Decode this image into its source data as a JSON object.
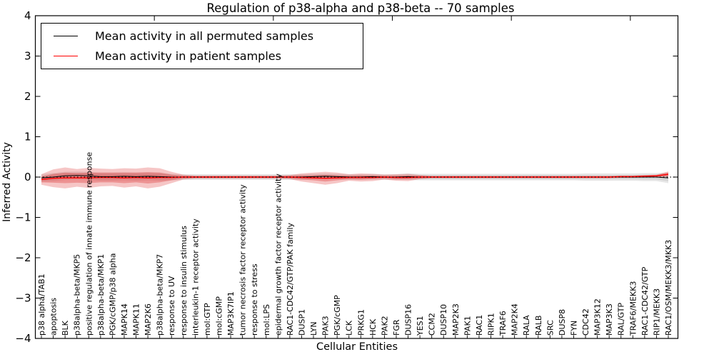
{
  "chart_data": {
    "type": "line",
    "title": "Regulation of p38-alpha and p38-beta -- 70 samples",
    "xlabel": "Cellular Entities",
    "ylabel": "Inferred Activity",
    "ylim": [
      -4,
      4
    ],
    "xlim": [
      0,
      54
    ],
    "grid": false,
    "legend_position": "upper left",
    "y_ticks": [
      4,
      3,
      2,
      1,
      0,
      -1,
      -2,
      -3,
      -4
    ],
    "y_tick_labels": [
      "4",
      "3",
      "2",
      "1",
      "0",
      "−1",
      "−2",
      "−3",
      "−4"
    ],
    "x_major_ticks": [
      10,
      20,
      30,
      40,
      50
    ],
    "categories": [
      "p38 alpha/TAB1",
      "apoptosis",
      "BLK",
      "p38alpha-beta/MKP5",
      "positive regulation of innate immune response",
      "p38alpha-beta/MKP1",
      "PGK/cGMP/p38 alpha",
      "MAPK14",
      "MAPK11",
      "MAP2K6",
      "p38alpha-beta/MKP7",
      "response to UV",
      "response to insulin stimulus",
      "interleukin-1 receptor activity",
      "mol:GTP",
      "mol:cGMP",
      "MAP3K7IP1",
      "tumor necrosis factor receptor activity",
      "response to stress",
      "mol:LPS",
      "epidermal growth factor receptor activity",
      "RAC1-CDC42/GTP/PAK family",
      "DUSP1",
      "LYN",
      "PAK3",
      "PGK/cGMP",
      "LCK",
      "PRKG1",
      "HCK",
      "PAK2",
      "FGR",
      "DUSP16",
      "YES1",
      "CCM2",
      "DUSP10",
      "MAP2K3",
      "PAK1",
      "RAC1",
      "RIPK1",
      "TRAF6",
      "MAP2K4",
      "RALA",
      "RALB",
      "SRC",
      "DUSP8",
      "FYN",
      "CDC42",
      "MAP3K12",
      "MAP3K3",
      "RAL/GTP",
      "TRAF6/MEKK3",
      "RAC1-CDC42/GTP",
      "RIP1/MEKK3",
      "RAC1/OSM/MEKK3/MKK3"
    ],
    "legend": {
      "entries": [
        {
          "label": "Mean activity in all permuted samples",
          "color": "#000000"
        },
        {
          "label": "Mean activity in patient samples",
          "color": "#ff0000"
        }
      ]
    },
    "series": [
      {
        "name": "Mean activity in all permuted samples",
        "color": "#000000",
        "style": "solid",
        "values": [
          -0.02,
          0.0,
          0.03,
          0.04,
          0.03,
          0.01,
          0.01,
          0.02,
          0.01,
          0.02,
          0.01,
          0.0,
          0,
          0,
          0,
          0,
          0,
          0,
          0,
          0,
          0,
          0,
          0,
          0.01,
          0.02,
          0.01,
          0,
          0,
          0.01,
          0,
          0,
          0.01,
          0,
          0,
          0,
          0,
          0,
          0,
          0,
          0,
          0,
          0,
          0,
          0,
          0,
          0,
          0,
          0,
          0,
          0,
          0,
          0,
          0,
          -0.02
        ]
      },
      {
        "name": "Mean activity in patient samples",
        "color": "#ff0000",
        "style": "solid",
        "values": [
          -0.06,
          -0.03,
          -0.02,
          -0.02,
          -0.02,
          -0.01,
          -0.01,
          -0.02,
          -0.01,
          -0.02,
          -0.01,
          -0.01,
          0,
          0,
          0,
          0,
          0,
          0,
          0,
          0,
          0,
          0,
          -0.01,
          -0.02,
          -0.03,
          -0.02,
          -0.01,
          -0.01,
          -0.01,
          0,
          -0.01,
          -0.01,
          0,
          0,
          0,
          0,
          0,
          0,
          0,
          0,
          0,
          0,
          0,
          0,
          0,
          0,
          0,
          0,
          0,
          0.01,
          0.01,
          0.02,
          0.03,
          0.07
        ]
      }
    ],
    "zero_line": {
      "color": "#000000",
      "style": "dotted",
      "y": 0
    },
    "bands": [
      {
        "name": "permuted-band-outer",
        "center": "permuted",
        "color": "#888888",
        "opacity": 0.21,
        "half_widths": [
          0.09,
          0.1,
          0.1,
          0.1,
          0.1,
          0.1,
          0.1,
          0.1,
          0.1,
          0.1,
          0.1,
          0.08,
          0.07,
          0.07,
          0.07,
          0.07,
          0.07,
          0.07,
          0.07,
          0.07,
          0.07,
          0.07,
          0.07,
          0.07,
          0.07,
          0.07,
          0.07,
          0.07,
          0.07,
          0.07,
          0.07,
          0.08,
          0.08,
          0.08,
          0.08,
          0.08,
          0.08,
          0.08,
          0.08,
          0.08,
          0.08,
          0.08,
          0.08,
          0.08,
          0.08,
          0.08,
          0.09,
          0.09,
          0.09,
          0.09,
          0.09,
          0.1,
          0.1,
          0.13
        ]
      },
      {
        "name": "permuted-band-inner",
        "center": "permuted",
        "color": "#888888",
        "opacity": 0.18,
        "half_widths": [
          0.05,
          0.06,
          0.06,
          0.06,
          0.06,
          0.06,
          0.06,
          0.06,
          0.06,
          0.06,
          0.06,
          0.05,
          0.04,
          0.04,
          0.04,
          0.04,
          0.04,
          0.04,
          0.04,
          0.04,
          0.04,
          0.04,
          0.04,
          0.04,
          0.04,
          0.04,
          0.04,
          0.04,
          0.04,
          0.04,
          0.04,
          0.05,
          0.05,
          0.05,
          0.05,
          0.05,
          0.05,
          0.05,
          0.05,
          0.05,
          0.05,
          0.05,
          0.05,
          0.05,
          0.05,
          0.05,
          0.05,
          0.05,
          0.05,
          0.05,
          0.05,
          0.06,
          0.06,
          0.08
        ]
      },
      {
        "name": "patient-band-outer",
        "center": "patient",
        "color": "#dd3333",
        "opacity": 0.28,
        "half_widths": [
          0.13,
          0.22,
          0.26,
          0.22,
          0.25,
          0.22,
          0.21,
          0.24,
          0.22,
          0.26,
          0.23,
          0.14,
          0.06,
          0.04,
          0.04,
          0.04,
          0.04,
          0.04,
          0.04,
          0.04,
          0.04,
          0.05,
          0.1,
          0.13,
          0.16,
          0.13,
          0.08,
          0.1,
          0.09,
          0.06,
          0.08,
          0.09,
          0.05,
          0.03,
          0.03,
          0.03,
          0.03,
          0.03,
          0.03,
          0.03,
          0.03,
          0.03,
          0.03,
          0.03,
          0.03,
          0.03,
          0.03,
          0.03,
          0.03,
          0.03,
          0.03,
          0.03,
          0.03,
          0.07
        ]
      },
      {
        "name": "patient-band-inner",
        "center": "patient",
        "color": "#dd3333",
        "opacity": 0.35,
        "half_widths": [
          0.07,
          0.11,
          0.13,
          0.12,
          0.13,
          0.12,
          0.12,
          0.13,
          0.12,
          0.14,
          0.12,
          0.07,
          0.03,
          0.02,
          0.02,
          0.02,
          0.02,
          0.02,
          0.02,
          0.02,
          0.02,
          0.03,
          0.05,
          0.06,
          0.08,
          0.06,
          0.04,
          0.05,
          0.04,
          0.03,
          0.04,
          0.04,
          0.03,
          0.02,
          0.02,
          0.02,
          0.02,
          0.02,
          0.02,
          0.02,
          0.02,
          0.02,
          0.02,
          0.02,
          0.02,
          0.02,
          0.02,
          0.02,
          0.02,
          0.02,
          0.02,
          0.02,
          0.02,
          0.04
        ]
      }
    ]
  }
}
